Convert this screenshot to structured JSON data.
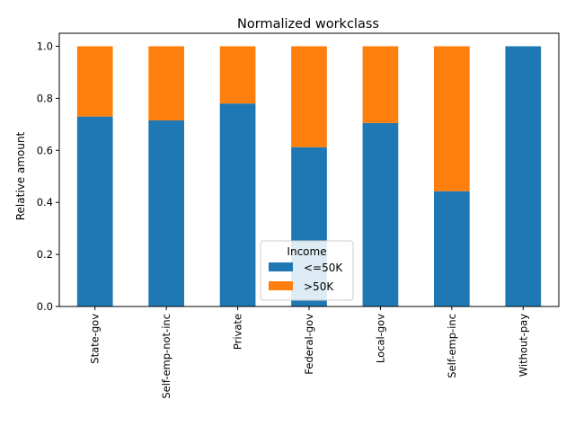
{
  "chart_data": {
    "type": "bar",
    "stacked": true,
    "title": "Normalized workclass",
    "xlabel": "",
    "ylabel": "Relative amount",
    "ylim": [
      0,
      1.05
    ],
    "yticks": [
      "0.0",
      "0.2",
      "0.4",
      "0.6",
      "0.8",
      "1.0"
    ],
    "categories": [
      "State-gov",
      "Self-emp-not-inc",
      "Private",
      "Federal-gov",
      "Local-gov",
      "Self-emp-inc",
      "Without-pay"
    ],
    "series": [
      {
        "name": "<=50K",
        "color": "#1f77b4",
        "values": [
          0.73,
          0.715,
          0.78,
          0.612,
          0.705,
          0.443,
          1.0
        ]
      },
      {
        "name": ">50K",
        "color": "#ff7f0e",
        "values": [
          0.27,
          0.285,
          0.22,
          0.388,
          0.295,
          0.557,
          0.0
        ]
      }
    ],
    "legend": {
      "title": "Income",
      "placement": "lower-center"
    },
    "grid": false
  }
}
